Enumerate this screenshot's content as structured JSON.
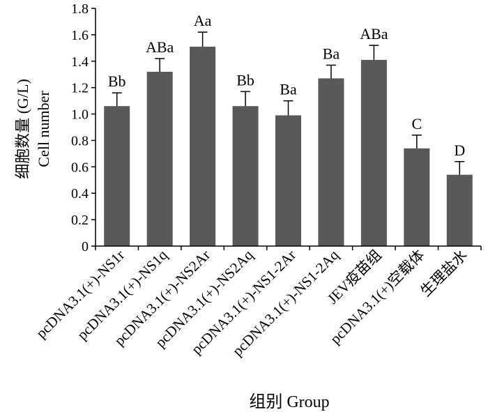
{
  "chart_data": {
    "type": "bar",
    "ylabel_cn": "细胞数量 (G/L)",
    "ylabel_en": "Cell number",
    "xlabel": "组别 Group",
    "ylim": [
      0,
      1.8
    ],
    "yticks": [
      "0",
      "0.2",
      "0.4",
      "0.6",
      "0.8",
      "1.0",
      "1.2",
      "1.4",
      "1.6",
      "1.8"
    ],
    "ytick_values": [
      0,
      0.2,
      0.4,
      0.6,
      0.8,
      1.0,
      1.2,
      1.4,
      1.6,
      1.8
    ],
    "categories": [
      "pcDNA3.1(+)-NS1r",
      "pcDNA3.1(+)-NS1q",
      "pcDNA3.1(+)-NS2Ar",
      "pcDNA3.1(+)-NS2Aq",
      "pcDNA3.1(+)-NS1-2Ar",
      "pcDNA3.1(+)-NS1-2Aq",
      "JEV疫苗组",
      "pcDNA3.1(+)空载体",
      "生理盐水"
    ],
    "values": [
      1.06,
      1.32,
      1.51,
      1.06,
      0.99,
      1.27,
      1.41,
      0.74,
      0.54
    ],
    "errors": [
      0.1,
      0.1,
      0.11,
      0.11,
      0.11,
      0.1,
      0.11,
      0.1,
      0.1
    ],
    "significance": [
      "Bb",
      "ABa",
      "Aa",
      "Bb",
      "Ba",
      "Ba",
      "ABa",
      "C",
      "D"
    ],
    "bar_color": "#595959",
    "grid": false
  }
}
